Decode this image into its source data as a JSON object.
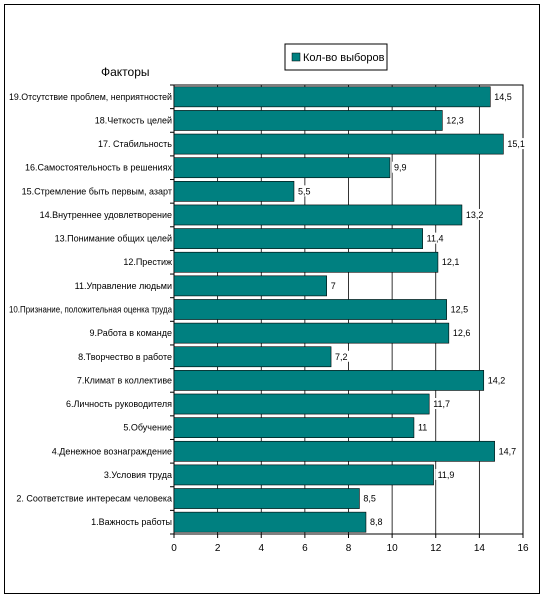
{
  "chart_data": {
    "type": "bar",
    "orientation": "horizontal",
    "title": "Факторы",
    "categories": [
      "19.Отсутствие проблем, неприятностей",
      "18.Четкость целей",
      "17. Стабильность",
      "16.Самостоятельность в решениях",
      "15.Стремление быть первым, азарт",
      "14.Внутреннее удовлетворение",
      "13.Понимание общих целей",
      "12.Престиж",
      "11.Управление людьми",
      "10.Признание, положительная оценка труда",
      "9.Работа в команде",
      "8.Творчество в работе",
      "7.Климат в коллективе",
      "6.Личность руководителя",
      "5.Обучение",
      "4.Денежное вознаграждение",
      "3.Условия труда",
      "2. Соответствие интересам человека",
      "1.Важность работы"
    ],
    "values": [
      14.5,
      12.3,
      15.1,
      9.9,
      5.5,
      13.2,
      11.4,
      12.1,
      7,
      12.5,
      12.6,
      7.2,
      14.2,
      11.7,
      11,
      14.7,
      11.9,
      8.5,
      8.8
    ],
    "value_labels": [
      "14,5",
      "12,3",
      "15,1",
      "9,9",
      "5,5",
      "13,2",
      "11,4",
      "12,1",
      "7",
      "12,5",
      "12,6",
      "7,2",
      "14,2",
      "11,7",
      "11",
      "14,7",
      "11,9",
      "8,5",
      "8,8"
    ],
    "series": [
      {
        "name": "Кол-во выборов"
      }
    ],
    "xlim": [
      0,
      16
    ],
    "xticks": [
      "0",
      "2",
      "4",
      "6",
      "8",
      "10",
      "12",
      "14",
      "16"
    ],
    "grid": true,
    "legend": "top-right",
    "bar_color": "#008080"
  }
}
